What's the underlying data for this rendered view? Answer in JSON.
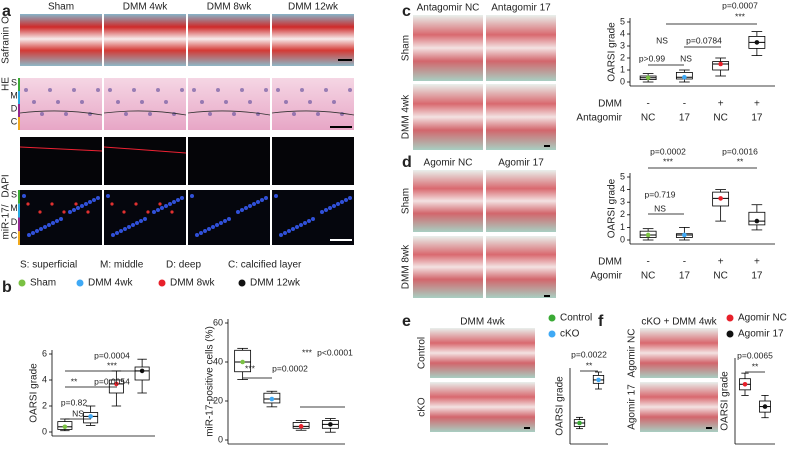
{
  "figure": {
    "panel_labels": [
      "a",
      "b",
      "c",
      "d",
      "e",
      "f"
    ],
    "a": {
      "columns": [
        "Sham",
        "DMM 4wk",
        "DMM 8wk",
        "DMM 12wk"
      ],
      "row_labels": [
        "Safranin O",
        "HE"
      ],
      "fluor_label": [
        "miR-17/",
        "DAPI"
      ],
      "zone_letters": [
        "S",
        "M",
        "D",
        "C"
      ],
      "zone_colors": [
        "#3aaa35",
        "#29abe2",
        "#93278f",
        "#f0a81c"
      ],
      "legend": [
        "S: superficial",
        "M: middle",
        "D: deep",
        "C: calcified layer"
      ]
    },
    "b": {
      "legend": [
        {
          "name": "Sham",
          "color": "#7ac143"
        },
        {
          "name": "DMM 4wk",
          "color": "#3fa9f5"
        },
        {
          "name": "DMM 8wk",
          "color": "#e8202a"
        },
        {
          "name": "DMM 12wk",
          "color": "#111111"
        }
      ]
    },
    "c": {
      "columns": [
        "Antagomir NC",
        "Antagomir 17"
      ],
      "rows": [
        "Sham",
        "DMM 4wk"
      ]
    },
    "d": {
      "columns": [
        "Agomir NC",
        "Agomir 17"
      ],
      "rows": [
        "Sham",
        "DMM 8wk"
      ]
    },
    "e": {
      "column": "DMM 4wk",
      "rows": [
        "Control",
        "cKO"
      ],
      "legend": [
        {
          "name": "Control",
          "color": "#3aaa35"
        },
        {
          "name": "cKO",
          "color": "#3fa9f5"
        }
      ]
    },
    "f": {
      "column": "cKO + DMM 4wk",
      "rows": [
        "Agomir NC",
        "Agomir 17"
      ],
      "legend": [
        {
          "name": "Agomir NC",
          "color": "#e8202a"
        },
        {
          "name": "Agomir 17",
          "color": "#111111"
        }
      ]
    }
  },
  "chart_data": [
    {
      "type": "box",
      "ylabel": "OARSI grade",
      "ylim": [
        0,
        6
      ],
      "yticks": [
        0,
        2,
        4,
        6
      ],
      "boxes": [
        {
          "color": "#7ac143",
          "stats": [
            0.1,
            0.2,
            0.4,
            0.8,
            1.0
          ]
        },
        {
          "color": "#3fa9f5",
          "stats": [
            0.5,
            0.7,
            1.2,
            1.5,
            2.0
          ]
        },
        {
          "color": "#e8202a",
          "stats": [
            2.0,
            3.0,
            3.7,
            4.0,
            4.7
          ]
        },
        {
          "color": "#111111",
          "stats": [
            3.0,
            4.0,
            4.7,
            5.0,
            5.6
          ]
        }
      ],
      "annotations": [
        "p=0.0004",
        "***",
        "**",
        "p=0.0054",
        "p=0.82",
        "NS"
      ]
    },
    {
      "type": "box",
      "ylabel": "miR-17-positive cells (%)",
      "ylim": [
        0,
        60
      ],
      "yticks": [
        0,
        20,
        40,
        60
      ],
      "boxes": [
        {
          "color": "#7ac143",
          "stats": [
            31,
            35,
            40,
            46,
            47
          ]
        },
        {
          "color": "#3fa9f5",
          "stats": [
            17,
            19,
            21,
            24,
            25
          ]
        },
        {
          "color": "#e8202a",
          "stats": [
            5,
            6,
            7,
            9,
            10
          ]
        },
        {
          "color": "#111111",
          "stats": [
            4,
            6,
            8,
            10,
            11
          ]
        }
      ],
      "annotations": [
        "***",
        "p<0.0001",
        "***",
        "p=0.0002"
      ]
    },
    {
      "type": "box",
      "ylabel": "OARSI grade",
      "ylim": [
        0,
        5
      ],
      "yticks": [
        0,
        1,
        2,
        3,
        4,
        5
      ],
      "boxes": [
        {
          "color": "#7ac143",
          "stats": [
            0,
            0.2,
            0.35,
            0.5,
            0.7
          ]
        },
        {
          "color": "#3fa9f5",
          "stats": [
            0,
            0.25,
            0.4,
            0.8,
            1.0
          ]
        },
        {
          "color": "#e8202a",
          "stats": [
            0.5,
            1.0,
            1.5,
            1.7,
            2.0
          ]
        },
        {
          "color": "#111111",
          "stats": [
            2.2,
            2.8,
            3.3,
            3.8,
            4.2
          ]
        }
      ],
      "x_rows": [
        {
          "label": "DMM",
          "values": [
            "-",
            "-",
            "+",
            "+"
          ]
        },
        {
          "label": "Antagomir",
          "values": [
            "NC",
            "17",
            "NC",
            "17"
          ]
        }
      ],
      "annotations": [
        "p=0.0007",
        "***",
        "NS",
        "p=0.0784",
        "p>0.99",
        "NS"
      ]
    },
    {
      "type": "box",
      "ylabel": "OARSI grade",
      "ylim": [
        0,
        5
      ],
      "yticks": [
        0,
        1,
        2,
        3,
        4,
        5
      ],
      "boxes": [
        {
          "color": "#7ac143",
          "stats": [
            0,
            0.2,
            0.4,
            0.7,
            0.9
          ]
        },
        {
          "color": "#3fa9f5",
          "stats": [
            0,
            0.2,
            0.4,
            0.5,
            1.0
          ]
        },
        {
          "color": "#e8202a",
          "stats": [
            1.5,
            2.7,
            3.3,
            3.8,
            4.0
          ]
        },
        {
          "color": "#111111",
          "stats": [
            0.8,
            1.2,
            1.5,
            2.2,
            2.8
          ]
        }
      ],
      "x_rows": [
        {
          "label": "DMM",
          "values": [
            "-",
            "-",
            "+",
            "+"
          ]
        },
        {
          "label": "Agomir",
          "values": [
            "NC",
            "17",
            "NC",
            "17"
          ]
        }
      ],
      "annotations": [
        "p=0.0002",
        "***",
        "p=0.0016",
        "**",
        "p=0.719",
        "NS"
      ]
    },
    {
      "type": "box",
      "ylabel": "OARSI grade",
      "ylim": [
        0,
        6
      ],
      "boxes": [
        {
          "color": "#3aaa35",
          "stats": [
            1.0,
            1.2,
            1.5,
            1.8,
            2.0
          ]
        },
        {
          "color": "#3fa9f5",
          "stats": [
            4.5,
            5.0,
            5.3,
            5.7,
            6.0
          ]
        }
      ],
      "annotations": [
        "p=0.0022",
        "**"
      ]
    },
    {
      "type": "box",
      "ylabel": "OARSI grade",
      "ylim": [
        0,
        7
      ],
      "boxes": [
        {
          "color": "#e8202a",
          "stats": [
            4.0,
            4.5,
            5.0,
            5.5,
            6.0
          ]
        },
        {
          "color": "#111111",
          "stats": [
            2.0,
            2.5,
            3.0,
            3.5,
            4.0
          ]
        }
      ],
      "annotations": [
        "p=0.0065",
        "**"
      ]
    }
  ]
}
